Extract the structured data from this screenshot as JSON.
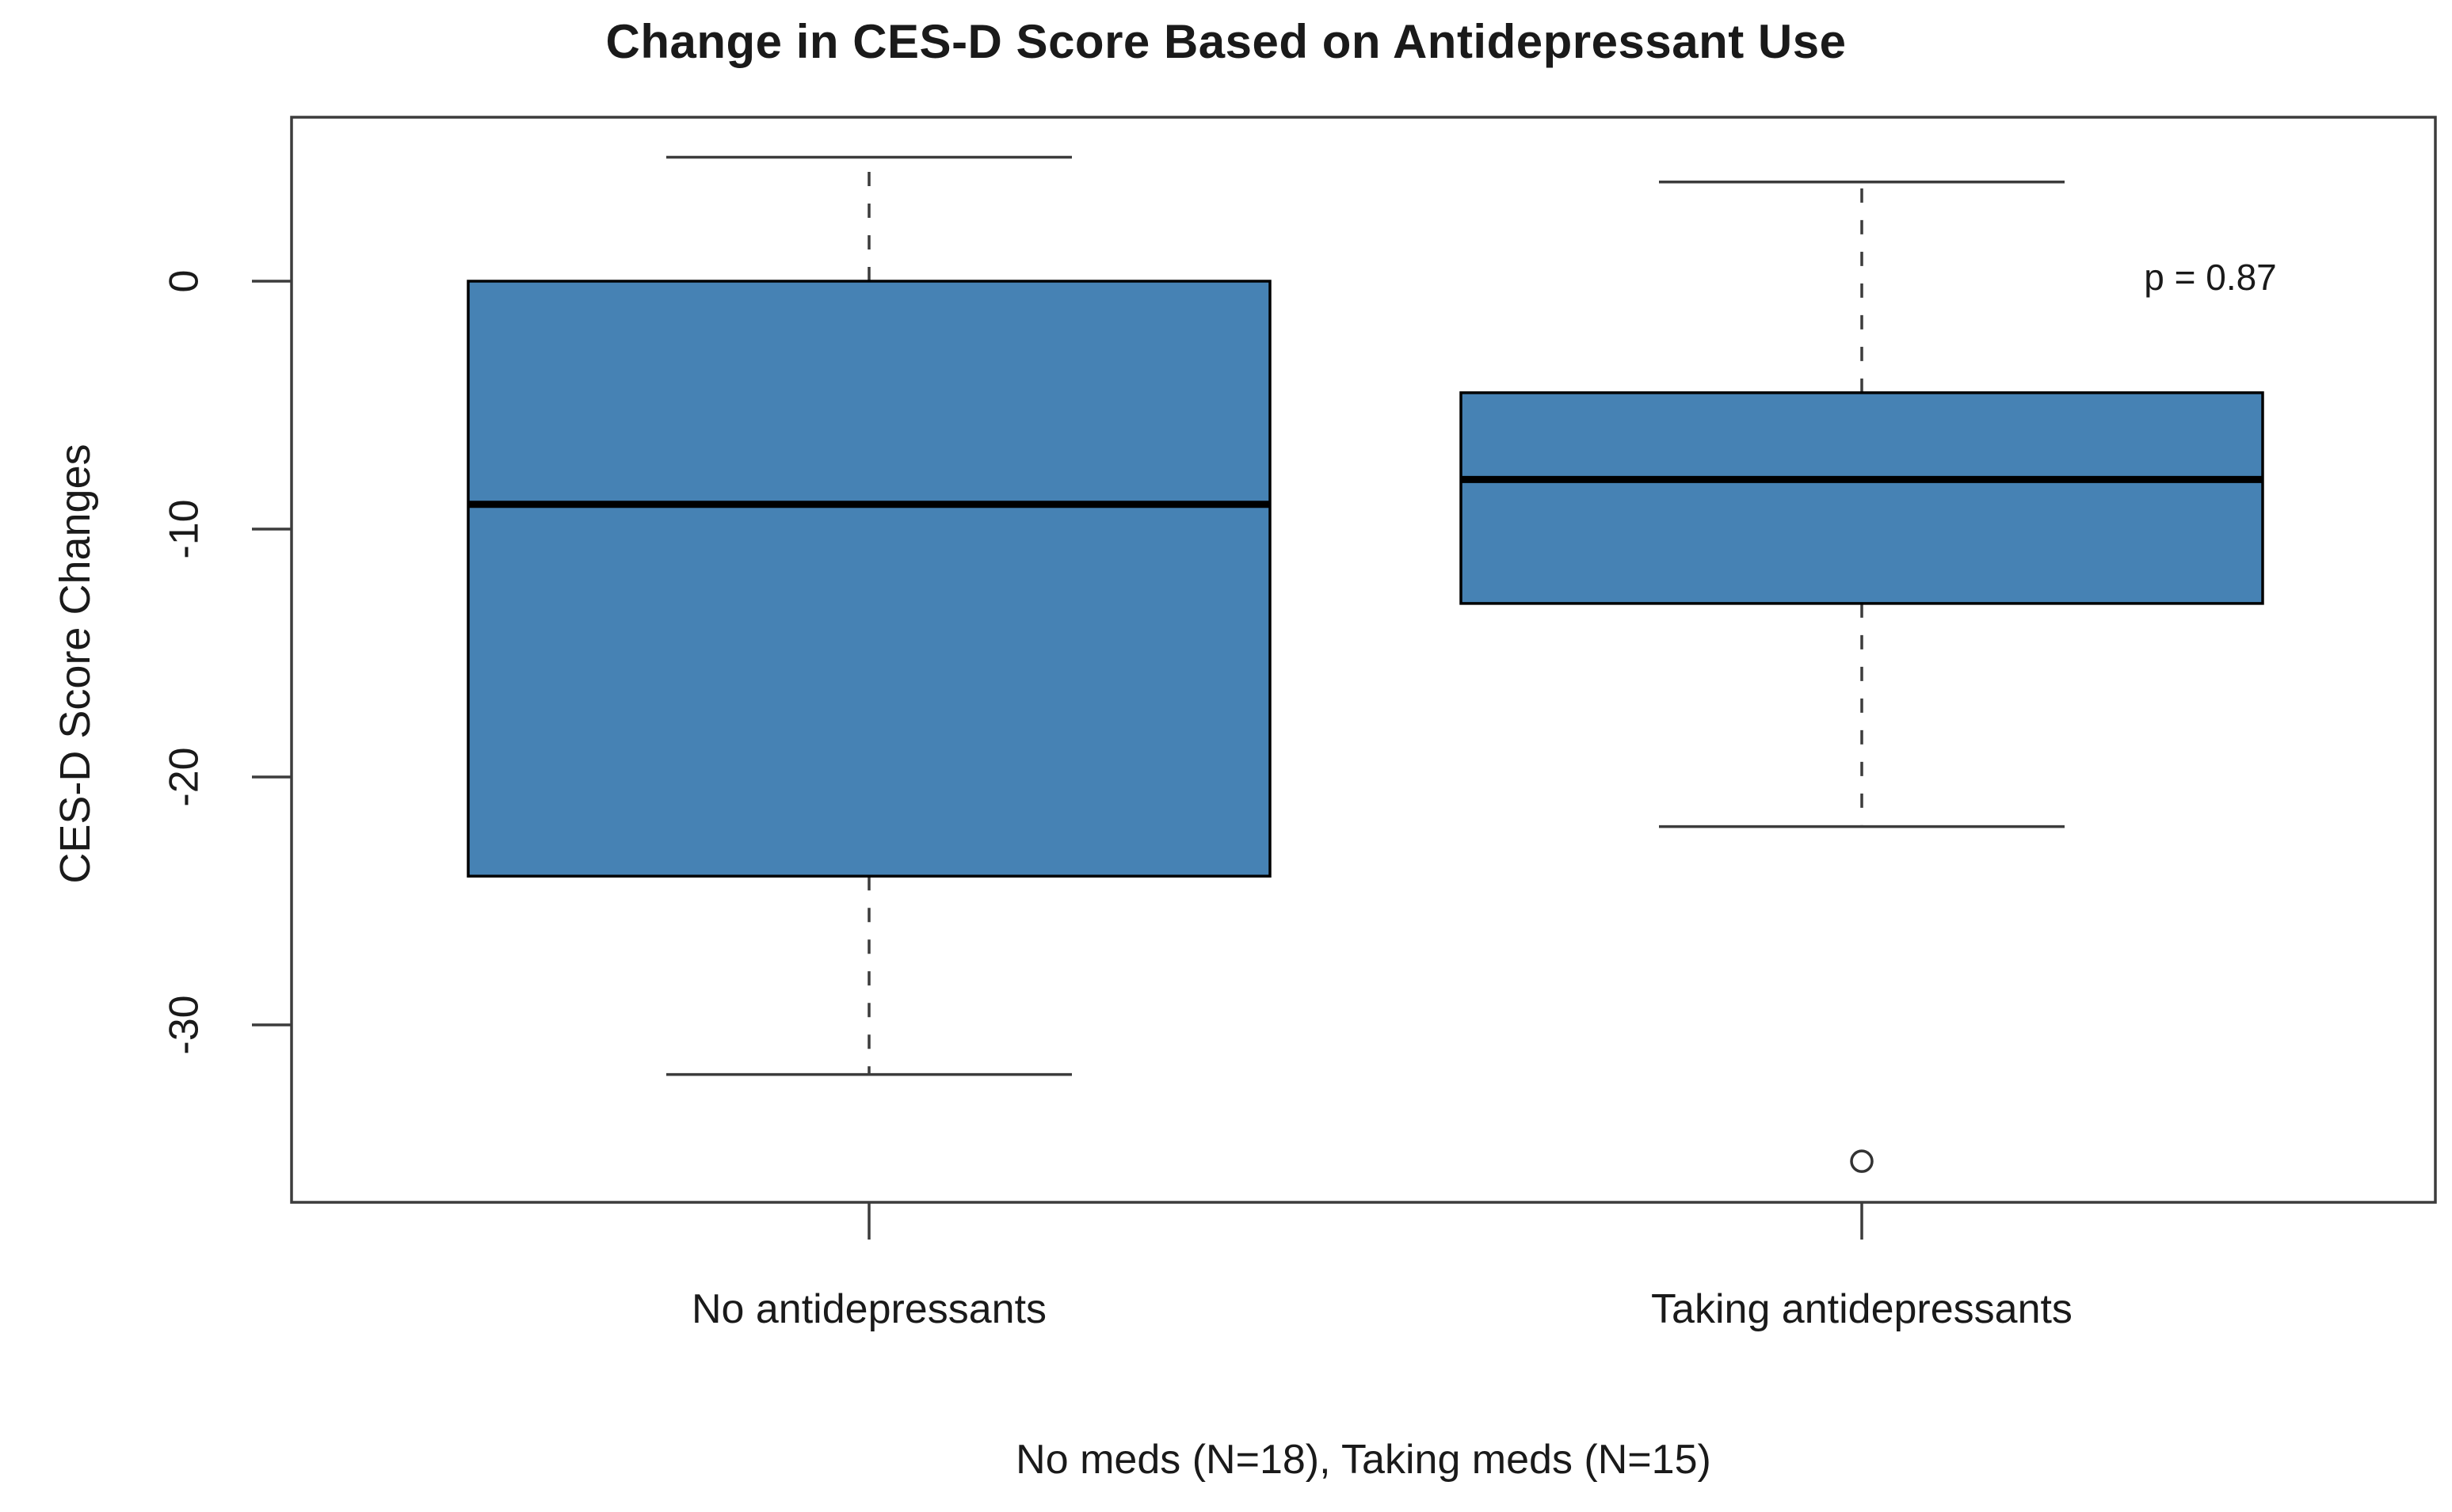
{
  "chart_data": {
    "type": "boxplot",
    "title": "Change in CES-D Score Based on Antidepressant Use",
    "ylabel": "CES-D Score Changes",
    "xlabel": "No meds (N=18), Taking meds (N=15)",
    "annotation": "p = 0.87",
    "categories": [
      "No antidepressants",
      "Taking antidepressants"
    ],
    "yticks": {
      "values": [
        0,
        -10,
        -20,
        -30
      ],
      "labels": [
        "0",
        "-10",
        "-20",
        "-30"
      ]
    },
    "ylim": [
      6.6,
      -37.2
    ],
    "grid": false,
    "legend": "none",
    "series": [
      {
        "name": "No antidepressants",
        "n": 18,
        "whisker_low": -32,
        "q1": -24,
        "median": -9,
        "q3": 0,
        "whisker_high": 5,
        "outliers": []
      },
      {
        "name": "Taking antidepressants",
        "n": 15,
        "whisker_low": -22,
        "q1": -13,
        "median": -8,
        "q3": -4.5,
        "whisker_high": 4,
        "outliers": [
          -35.5
        ]
      }
    ],
    "colors": {
      "box_fill": "#4682B4",
      "box_border": "#000000",
      "median": "#000000",
      "whisker": "#3c3c3c",
      "frame": "#3c3c3c",
      "tick": "#3c3c3c",
      "outlier_stroke": "#333333",
      "outlier_fill": "#ffffff"
    }
  }
}
